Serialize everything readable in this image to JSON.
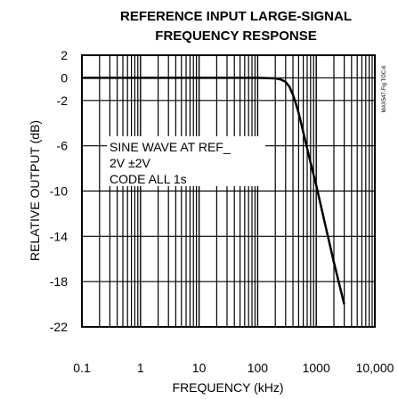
{
  "chart_data": {
    "type": "line",
    "title_line1": "REFERENCE INPUT LARGE-SIGNAL",
    "title_line2": "FREQUENCY RESPONSE",
    "xlabel": "FREQUENCY (kHz)",
    "ylabel": "RELATIVE OUTPUT (dB)",
    "x_scale": "log",
    "xlim": [
      0.1,
      10000
    ],
    "ylim": [
      -22,
      2
    ],
    "x_ticks": [
      {
        "value": 0.1,
        "label": "0.1"
      },
      {
        "value": 1,
        "label": "1"
      },
      {
        "value": 10,
        "label": "10"
      },
      {
        "value": 100,
        "label": "100"
      },
      {
        "value": 1000,
        "label": "1000"
      },
      {
        "value": 10000,
        "label": "10,000"
      }
    ],
    "y_ticks": [
      {
        "value": 2,
        "label": "2"
      },
      {
        "value": 0,
        "label": "0"
      },
      {
        "value": -2,
        "label": "-2"
      },
      {
        "value": -6,
        "label": "-6"
      },
      {
        "value": -10,
        "label": "-10"
      },
      {
        "value": -14,
        "label": "-14"
      },
      {
        "value": -18,
        "label": "-18"
      },
      {
        "value": -22,
        "label": "-22"
      }
    ],
    "grid": true,
    "annotation_lines": [
      "SINE WAVE AT REF_",
      "2V ±2V",
      "CODE ALL 1s"
    ],
    "figure_id": "MAX547-Fig TOC-6",
    "series": [
      {
        "x": [
          0.1,
          1,
          10,
          100,
          200,
          250,
          300,
          350,
          400,
          450,
          500,
          600,
          800,
          1000,
          1500,
          2000,
          3000
        ],
        "y": [
          0,
          0,
          0,
          0,
          -0.05,
          -0.15,
          -0.35,
          -0.8,
          -1.5,
          -2.3,
          -3.1,
          -4.8,
          -7.5,
          -9.5,
          -13.5,
          -16.3,
          -20
        ]
      }
    ]
  }
}
